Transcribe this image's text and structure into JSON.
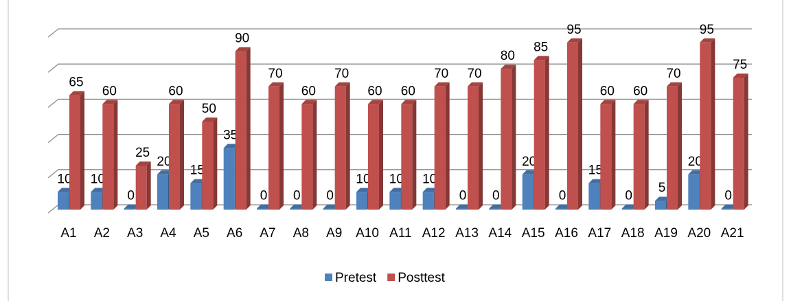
{
  "chart_data": {
    "type": "bar3d",
    "categories": [
      "A1",
      "A2",
      "A3",
      "A4",
      "A5",
      "A6",
      "A7",
      "A8",
      "A9",
      "A10",
      "A11",
      "A12",
      "A13",
      "A14",
      "A15",
      "A16",
      "A17",
      "A18",
      "A19",
      "A20",
      "A21"
    ],
    "series": [
      {
        "name": "Pretest",
        "color": "#4f81bd",
        "values": [
          10,
          10,
          0,
          20,
          15,
          35,
          0,
          0,
          0,
          10,
          10,
          10,
          0,
          0,
          20,
          0,
          15,
          0,
          5,
          20,
          0
        ]
      },
      {
        "name": "Posttest",
        "color": "#c0504d",
        "values": [
          65,
          60,
          25,
          60,
          50,
          90,
          70,
          60,
          70,
          60,
          60,
          70,
          70,
          80,
          85,
          95,
          60,
          60,
          70,
          95,
          75
        ]
      }
    ],
    "ylim": [
      0,
      100
    ],
    "yticks": [
      0,
      20,
      40,
      60,
      80,
      100
    ],
    "grid": true,
    "legend": "bottom"
  }
}
